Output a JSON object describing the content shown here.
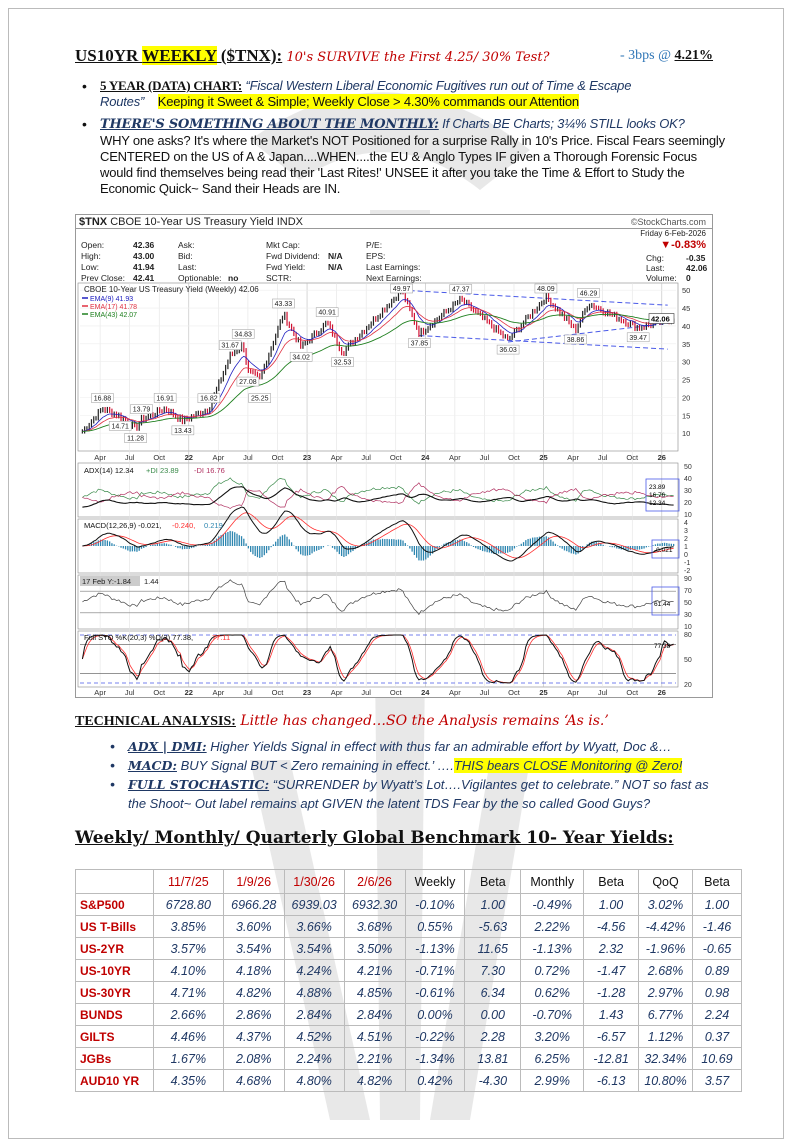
{
  "header": {
    "title_a": "US10YR ",
    "title_b": "WEEKLY",
    "title_c": " ($TNX):",
    "subtitle": " 10's SURVIVE the First 4.25/ 30% Test?",
    "change": "- 3bps @ ",
    "yield": "4.21%"
  },
  "bullets": [
    {
      "label": "5 YEAR (DATA) CHART:",
      "text": " “Fiscal Western Liberal Economic Fugitives run out of Time & Escape Routes”",
      "highlight": "Keeping it Sweet & Simple; Weekly Close > 4.30% commands our Attention"
    },
    {
      "label": "THERE'S SOMETHING ABOUT THE MONTHLY:",
      "lead": " If Charts BE Charts; 3¼%  STILL looks OK?",
      "text": "WHY one asks? It's where the Market's NOT Positioned for a surprise Rally in 10's Price. Fiscal Fears seemingly CENTERED on the US of A & Japan....WHEN....the EU & Anglo Types IF given a Thorough Forensic Focus would find themselves being read their 'Last Rites!' UNSEE it after you take the Time & Effort to Study the Economic Quick~ Sand their Heads are IN."
    }
  ],
  "chart_header": {
    "symbol": "$TNX",
    "name": "CBOE 10-Year US Treasury Yield INDX",
    "source": "©StockCharts.com",
    "date": "Friday  6-Feb-2026",
    "change_pct": "▼-0.83%",
    "fields": [
      [
        "Open:",
        "42.36"
      ],
      [
        "High:",
        "43.00"
      ],
      [
        "Low:",
        "41.94"
      ],
      [
        "Prev Close:",
        "42.41"
      ]
    ],
    "col2": [
      "Ask:",
      "Bid:",
      "Last:",
      "Optionable:"
    ],
    "optionable": "no",
    "col3": [
      [
        "Mkt Cap:",
        ""
      ],
      [
        "Fwd Dividend:",
        "N/A"
      ],
      [
        "Fwd Yield:",
        "N/A"
      ],
      [
        "SCTR:",
        ""
      ]
    ],
    "col4": [
      "P/E:",
      "EPS:",
      "Last Earnings:",
      "Next Earnings:"
    ],
    "right": [
      [
        "Chg:",
        "-0.35"
      ],
      [
        "Last:",
        "42.06"
      ],
      [
        "Volume:",
        "0"
      ]
    ]
  },
  "chart_data": {
    "type": "line",
    "title": "CBOE 10-Year US Treasury Yield (Weekly) 42.06",
    "legend": [
      "EMA(9) 41.93",
      "EMA(17) 41.78",
      "EMA(43) 42.07"
    ],
    "ylim": [
      5,
      52
    ],
    "yticks": [
      10,
      15,
      20,
      25,
      30,
      35,
      40,
      45,
      50
    ],
    "last_label": "42.06",
    "xticks": [
      [
        "Apr",
        2021.25
      ],
      [
        "Jul",
        2021.5
      ],
      [
        "Oct",
        2021.75
      ],
      [
        "22",
        2022.0
      ],
      [
        "Apr",
        2022.25
      ],
      [
        "Jul",
        2022.5
      ],
      [
        "Oct",
        2022.75
      ],
      [
        "23",
        2023.0
      ],
      [
        "Apr",
        2023.25
      ],
      [
        "Jul",
        2023.5
      ],
      [
        "Oct",
        2023.75
      ],
      [
        "24",
        2024.0
      ],
      [
        "Apr",
        2024.25
      ],
      [
        "Jul",
        2024.5
      ],
      [
        "Oct",
        2024.75
      ],
      [
        "25",
        2025.0
      ],
      [
        "Apr",
        2025.25
      ],
      [
        "Jul",
        2025.5
      ],
      [
        "Oct",
        2025.75
      ],
      [
        "26",
        2026.0
      ]
    ],
    "pivots": [
      [
        2021.1,
        10.5,
        ""
      ],
      [
        2021.27,
        16.88,
        "16.88"
      ],
      [
        2021.42,
        14.71,
        "14.71"
      ],
      [
        2021.55,
        11.28,
        "11.28"
      ],
      [
        2021.6,
        13.79,
        "13.79"
      ],
      [
        2021.8,
        16.91,
        "16.91"
      ],
      [
        2021.95,
        13.43,
        "13.43"
      ],
      [
        2022.17,
        16.82,
        "16.82"
      ],
      [
        2022.35,
        31.67,
        "31.67"
      ],
      [
        2022.46,
        34.83,
        "34.83"
      ],
      [
        2022.5,
        27.08,
        "27.08"
      ],
      [
        2022.6,
        25.25,
        "25.25"
      ],
      [
        2022.8,
        43.33,
        "43.33"
      ],
      [
        2022.95,
        34.02,
        "34.02"
      ],
      [
        2023.17,
        40.91,
        "40.91"
      ],
      [
        2023.3,
        32.53,
        "32.53"
      ],
      [
        2023.8,
        49.97,
        "49.97"
      ],
      [
        2023.95,
        37.85,
        "37.85"
      ],
      [
        2024.3,
        47.37,
        "47.37"
      ],
      [
        2024.7,
        36.03,
        "36.03"
      ],
      [
        2025.02,
        48.09,
        "48.09"
      ],
      [
        2025.27,
        38.86,
        "38.86"
      ],
      [
        2025.38,
        46.29,
        "46.29"
      ],
      [
        2025.8,
        39.47,
        "39.47"
      ],
      [
        2026.1,
        42.06,
        ""
      ]
    ],
    "indicators": {
      "adx": {
        "label": "ADX(14) 12.34",
        "pdi": "+DI 23.89",
        "mdi": "-DI 16.76",
        "ticks": [
          "50",
          "40",
          "30",
          "20",
          "10"
        ],
        "tags": [
          "23.89",
          "16.76",
          "12.34"
        ]
      },
      "macd": {
        "label": "MACD(12,26,9) -0.021,",
        "signal": " -0.240,",
        "hist": " 0.219",
        "ticks": [
          "4",
          "3",
          "2",
          "1",
          "0",
          "-1",
          "-2"
        ],
        "tag": "-0.021"
      },
      "rsi": {
        "label": "17 Feb Y:-1.84",
        "value": "1.44",
        "ticks": [
          "90",
          "70",
          "50",
          "30",
          "10"
        ],
        "tag": "61.44"
      },
      "sto": {
        "label": "Full STO %K(20,3) %D(3) 77.38,",
        "d": " 77.11",
        "ticks": [
          "80",
          "50",
          "20"
        ],
        "tag": "77.38"
      }
    }
  },
  "colors": {
    "red": "#c00000",
    "navy": "#1f3864",
    "ema9": "#2020c0",
    "ema17": "#e03040",
    "ema43": "#208020",
    "channel": "#4a5ae8",
    "macd_hist": "#2e86b0"
  },
  "technical": {
    "label": "TECHNICAL ANALYSIS:",
    "subtitle": " Little has changed…SO the Analysis remains ‘As is.’",
    "items": [
      {
        "key": "ADX | DMI:",
        "text": " Higher Yields Signal in effect with thus far an admirable effort by Wyatt, Doc &…"
      },
      {
        "key": "MACD:",
        "text": " BUY Signal BUT < Zero remaining in effect.’ ….",
        "highlight": "THIS bears CLOSE Monitoring @ Zero!"
      },
      {
        "key": "FULL STOCHASTIC:",
        "text": " “SURRENDER by Wyatt’s Lot….Vigilantes get to celebrate.”   NOT so fast as the Shoot~ Out label remains apt GIVEN the latent TDS Fear by the so called Good Guys?"
      }
    ]
  },
  "table": {
    "title": "Weekly/ Monthly/ Quarterly Global Benchmark 10- Year Yields",
    "title_colon": ":",
    "headers": [
      "",
      "11/7/25",
      "1/9/26",
      "1/30/26",
      "2/6/26",
      "Weekly",
      "Beta",
      "Monthly",
      "Beta",
      "QoQ",
      "Beta"
    ],
    "rows": [
      [
        "S&P500",
        "6728.80",
        "6966.28",
        "6939.03",
        "6932.30",
        "-0.10%",
        "1.00",
        "-0.49%",
        "1.00",
        "3.02%",
        "1.00"
      ],
      [
        "US T-Bills",
        "3.85%",
        "3.60%",
        "3.66%",
        "3.68%",
        "0.55%",
        "-5.63",
        "2.22%",
        "-4.56",
        "-4.42%",
        "-1.46"
      ],
      [
        "US-2YR",
        "3.57%",
        "3.54%",
        "3.54%",
        "3.50%",
        "-1.13%",
        "11.65",
        "-1.13%",
        "2.32",
        "-1.96%",
        "-0.65"
      ],
      [
        "US-10YR",
        "4.10%",
        "4.18%",
        "4.24%",
        "4.21%",
        "-0.71%",
        "7.30",
        "0.72%",
        "-1.47",
        "2.68%",
        "0.89"
      ],
      [
        "US-30YR",
        "4.71%",
        "4.82%",
        "4.88%",
        "4.85%",
        "-0.61%",
        "6.34",
        "0.62%",
        "-1.28",
        "2.97%",
        "0.98"
      ],
      [
        "BUNDS",
        "2.66%",
        "2.86%",
        "2.84%",
        "2.84%",
        "0.00%",
        "0.00",
        "-0.70%",
        "1.43",
        "6.77%",
        "2.24"
      ],
      [
        "GILTS",
        "4.46%",
        "4.37%",
        "4.52%",
        "4.51%",
        "-0.22%",
        "2.28",
        "3.20%",
        "-6.57",
        "1.12%",
        "0.37"
      ],
      [
        "JGBs",
        "1.67%",
        "2.08%",
        "2.24%",
        "2.21%",
        "-1.34%",
        "13.81",
        "6.25%",
        "-12.81",
        "32.34%",
        "10.69"
      ],
      [
        "AUD10 YR",
        "4.35%",
        "4.68%",
        "4.80%",
        "4.82%",
        "0.42%",
        "-4.30",
        "2.99%",
        "-6.13",
        "10.80%",
        "3.57"
      ]
    ]
  }
}
